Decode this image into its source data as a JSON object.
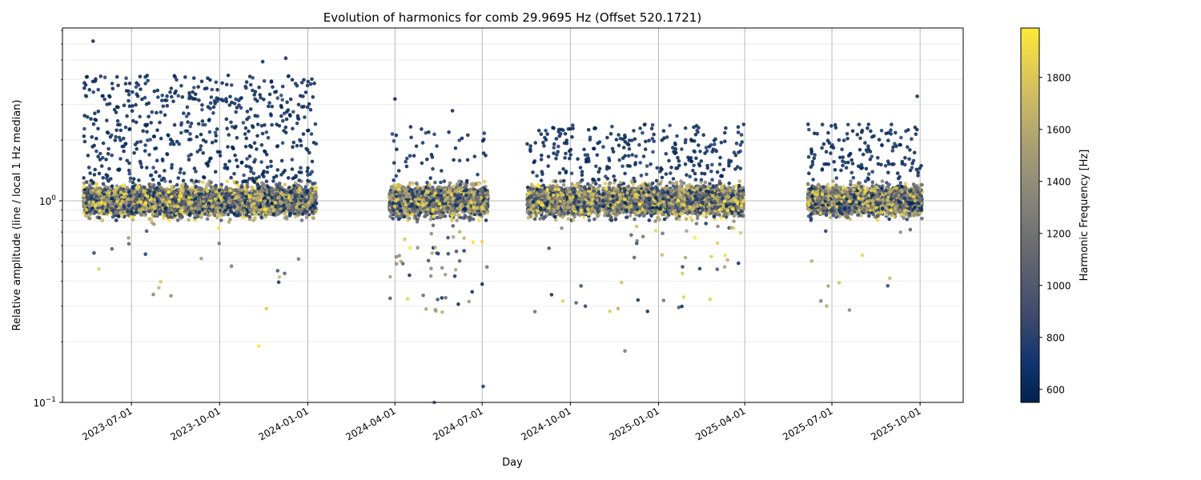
{
  "chart_data": {
    "type": "scatter",
    "title": "Evolution of harmonics for comb 29.9695 Hz (Offset 520.1721)",
    "xlabel": "Day",
    "ylabel": "Relative amplitude (line / local 1 Hz median)",
    "y_scale": "log",
    "ylim": [
      0.1,
      7.2
    ],
    "y_ticks": [
      {
        "value": 0.1,
        "base": "10",
        "exp": "−1"
      },
      {
        "value": 1.0,
        "base": "10",
        "exp": "0"
      }
    ],
    "xlim": [
      "2023-04-20",
      "2025-11-15"
    ],
    "x_ticks": [
      "2023-07-01",
      "2023-10-01",
      "2024-01-01",
      "2024-04-01",
      "2024-07-01",
      "2024-10-01",
      "2025-01-01",
      "2025-04-01",
      "2025-07-01",
      "2025-10-01"
    ],
    "colorbar": {
      "label": "Harmonic Frequency [Hz]",
      "range": [
        550,
        1990
      ],
      "ticks": [
        600,
        800,
        1000,
        1200,
        1400,
        1600,
        1800
      ],
      "colormap": "cividis",
      "colors": [
        "#00224e",
        "#123570",
        "#3b496c",
        "#575d6d",
        "#707173",
        "#8a8779",
        "#a59c74",
        "#c3b369",
        "#e1cc55",
        "#fee838"
      ]
    },
    "data_segments": [
      {
        "start": "2023-05-12",
        "end": "2024-01-10",
        "high_outlier_density": "high",
        "low_outlier_density": "low"
      },
      {
        "start": "2024-03-26",
        "end": "2024-07-07",
        "high_outlier_density": "low",
        "low_outlier_density": "high"
      },
      {
        "start": "2024-08-17",
        "end": "2024-11-01",
        "high_outlier_density": "medium",
        "low_outlier_density": "low"
      },
      {
        "start": "2024-11-04",
        "end": "2025-03-31",
        "high_outlier_density": "medium",
        "low_outlier_density": "medium"
      },
      {
        "start": "2025-06-06",
        "end": "2025-08-24",
        "high_outlier_density": "medium",
        "low_outlier_density": "low"
      },
      {
        "start": "2025-08-26",
        "end": "2025-10-03",
        "high_outlier_density": "medium",
        "low_outlier_density": "low"
      }
    ],
    "notable_points": [
      {
        "date": "2023-05-22",
        "value": 6.2,
        "freq": 560
      },
      {
        "date": "2023-11-15",
        "value": 4.9,
        "freq": 560
      },
      {
        "date": "2023-12-09",
        "value": 5.1,
        "freq": 560
      },
      {
        "date": "2024-05-12",
        "value": 0.1,
        "freq": 1000
      },
      {
        "date": "2024-07-02",
        "value": 0.12,
        "freq": 700
      },
      {
        "date": "2024-05-31",
        "value": 2.8,
        "freq": 560
      },
      {
        "date": "2024-04-01",
        "value": 3.2,
        "freq": 560
      },
      {
        "date": "2025-09-28",
        "value": 3.3,
        "freq": 560
      },
      {
        "date": "2023-11-11",
        "value": 0.19,
        "freq": 1990
      },
      {
        "date": "2024-11-27",
        "value": 0.18,
        "freq": 1200
      },
      {
        "date": "2025-03-11",
        "value": 0.47,
        "freq": 1500
      }
    ]
  }
}
